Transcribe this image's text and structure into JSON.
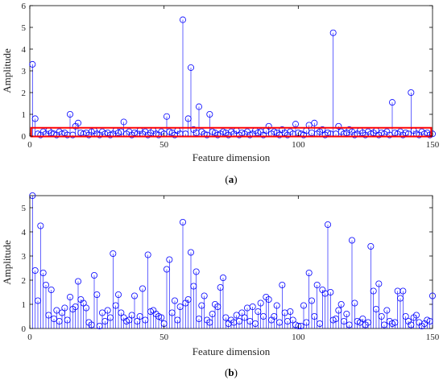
{
  "chart_data": [
    {
      "type": "stem",
      "panel_label": "(a)",
      "xlabel": "Feature dimension",
      "ylabel": "Amplitude",
      "xlim": [
        0,
        150
      ],
      "ylim": [
        0,
        6
      ],
      "xticks": [
        0,
        50,
        100,
        150
      ],
      "yticks": [
        0,
        1,
        2,
        3,
        4,
        5,
        6
      ],
      "grid": false,
      "stem_color": "#0000ff",
      "highlight_box": {
        "x_range": [
          0.5,
          149.5
        ],
        "y_range": [
          -0.02,
          0.38
        ],
        "color": "#ff0000"
      },
      "x": [
        1,
        2,
        3,
        4,
        5,
        6,
        7,
        8,
        9,
        10,
        11,
        12,
        13,
        14,
        15,
        16,
        17,
        18,
        19,
        20,
        21,
        22,
        23,
        24,
        25,
        26,
        27,
        28,
        29,
        30,
        31,
        32,
        33,
        34,
        35,
        36,
        37,
        38,
        39,
        40,
        41,
        42,
        43,
        44,
        45,
        46,
        47,
        48,
        49,
        50,
        51,
        52,
        53,
        54,
        55,
        56,
        57,
        58,
        59,
        60,
        61,
        62,
        63,
        64,
        65,
        66,
        67,
        68,
        69,
        70,
        71,
        72,
        73,
        74,
        75,
        76,
        77,
        78,
        79,
        80,
        81,
        82,
        83,
        84,
        85,
        86,
        87,
        88,
        89,
        90,
        91,
        92,
        93,
        94,
        95,
        96,
        97,
        98,
        99,
        100,
        101,
        102,
        103,
        104,
        105,
        106,
        107,
        108,
        109,
        110,
        111,
        112,
        113,
        114,
        115,
        116,
        117,
        118,
        119,
        120,
        121,
        122,
        123,
        124,
        125,
        126,
        127,
        128,
        129,
        130,
        131,
        132,
        133,
        134,
        135,
        136,
        137,
        138,
        139,
        140,
        141,
        142,
        143,
        144,
        145,
        146,
        147,
        148,
        149,
        150
      ],
      "values": [
        3.3,
        0.8,
        0.1,
        0.05,
        0.2,
        0.1,
        0.25,
        0.15,
        0.1,
        0.05,
        0.2,
        0.1,
        0.15,
        0.05,
        1.0,
        0.05,
        0.45,
        0.6,
        0.15,
        0.1,
        0.15,
        0.05,
        0.2,
        0.25,
        0.1,
        0.05,
        0.2,
        0.1,
        0.15,
        0.05,
        0.1,
        0.25,
        0.15,
        0.2,
        0.65,
        0.1,
        0.2,
        0.05,
        0.15,
        0.1,
        0.25,
        0.1,
        0.2,
        0.05,
        0.15,
        0.25,
        0.1,
        0.05,
        0.2,
        0.1,
        0.9,
        0.2,
        0.15,
        0.05,
        0.25,
        0.1,
        5.35,
        0.1,
        0.8,
        3.15,
        0.3,
        0.15,
        1.35,
        0.2,
        0.1,
        0.05,
        1.0,
        0.2,
        0.15,
        0.05,
        0.1,
        0.2,
        0.15,
        0.05,
        0.2,
        0.1,
        0.25,
        0.05,
        0.15,
        0.1,
        0.2,
        0.05,
        0.1,
        0.25,
        0.15,
        0.2,
        0.05,
        0.25,
        0.45,
        0.1,
        0.2,
        0.15,
        0.05,
        0.3,
        0.15,
        0.05,
        0.2,
        0.1,
        0.55,
        0.15,
        0.1,
        0.05,
        0.25,
        0.5,
        0.15,
        0.6,
        0.1,
        0.2,
        0.3,
        0.05,
        0.15,
        0.1,
        4.75,
        0.1,
        0.45,
        0.2,
        0.1,
        0.15,
        0.3,
        0.2,
        0.05,
        0.1,
        0.25,
        0.15,
        0.05,
        0.2,
        0.1,
        0.15,
        0.25,
        0.05,
        0.15,
        0.1,
        0.2,
        0.05,
        1.55,
        0.15,
        0.1,
        0.2,
        0.05,
        0.15,
        0.1,
        2.0,
        0.25,
        0.1,
        0.05,
        0.2,
        0.1,
        0.15,
        0.05,
        0.1
      ]
    },
    {
      "type": "stem",
      "panel_label": "(b)",
      "xlabel": "Feature dimension",
      "ylabel": "Amplitude",
      "xlim": [
        0,
        150
      ],
      "ylim": [
        0,
        5.5
      ],
      "xticks": [
        0,
        50,
        100,
        150
      ],
      "yticks": [
        0,
        1,
        2,
        3,
        4,
        5
      ],
      "grid": false,
      "stem_color": "#0000ff",
      "x": [
        1,
        2,
        3,
        4,
        5,
        6,
        7,
        8,
        9,
        10,
        11,
        12,
        13,
        14,
        15,
        16,
        17,
        18,
        19,
        20,
        21,
        22,
        23,
        24,
        25,
        26,
        27,
        28,
        29,
        30,
        31,
        32,
        33,
        34,
        35,
        36,
        37,
        38,
        39,
        40,
        41,
        42,
        43,
        44,
        45,
        46,
        47,
        48,
        49,
        50,
        51,
        52,
        53,
        54,
        55,
        56,
        57,
        58,
        59,
        60,
        61,
        62,
        63,
        64,
        65,
        66,
        67,
        68,
        69,
        70,
        71,
        72,
        73,
        74,
        75,
        76,
        77,
        78,
        79,
        80,
        81,
        82,
        83,
        84,
        85,
        86,
        87,
        88,
        89,
        90,
        91,
        92,
        93,
        94,
        95,
        96,
        97,
        98,
        99,
        100,
        101,
        102,
        103,
        104,
        105,
        106,
        107,
        108,
        109,
        110,
        111,
        112,
        113,
        114,
        115,
        116,
        117,
        118,
        119,
        120,
        121,
        122,
        123,
        124,
        125,
        126,
        127,
        128,
        129,
        130,
        131,
        132,
        133,
        134,
        135,
        136,
        137,
        138,
        139,
        140,
        141,
        142,
        143,
        144,
        145,
        146,
        147,
        148,
        149,
        150
      ],
      "values": [
        5.5,
        2.4,
        1.15,
        4.25,
        2.3,
        1.8,
        0.55,
        1.6,
        0.4,
        0.75,
        0.3,
        0.65,
        0.85,
        0.35,
        1.3,
        0.8,
        0.9,
        1.95,
        1.2,
        1.05,
        0.85,
        0.25,
        0.15,
        2.2,
        1.4,
        0.1,
        0.65,
        0.3,
        0.75,
        0.45,
        3.1,
        0.95,
        1.4,
        0.65,
        0.45,
        0.3,
        0.35,
        0.55,
        1.35,
        0.3,
        0.5,
        1.65,
        0.35,
        3.05,
        0.7,
        0.75,
        0.6,
        0.5,
        0.45,
        0.2,
        2.45,
        2.85,
        0.65,
        1.15,
        0.35,
        0.9,
        4.4,
        1.05,
        1.2,
        3.15,
        1.75,
        2.35,
        0.4,
        0.95,
        1.35,
        0.35,
        0.25,
        0.6,
        1.0,
        0.9,
        1.7,
        2.1,
        0.45,
        0.2,
        0.35,
        0.25,
        0.55,
        0.3,
        0.65,
        0.45,
        0.85,
        0.3,
        0.9,
        0.2,
        0.7,
        1.05,
        0.5,
        1.3,
        1.2,
        0.35,
        0.5,
        0.95,
        0.25,
        1.8,
        0.65,
        0.3,
        0.7,
        0.35,
        0.15,
        0.1,
        0.1,
        0.95,
        0.25,
        2.3,
        1.15,
        0.5,
        1.8,
        0.2,
        1.6,
        1.45,
        4.3,
        1.5,
        0.35,
        0.4,
        0.75,
        1.0,
        0.3,
        0.6,
        0.15,
        3.65,
        1.05,
        0.3,
        0.25,
        0.4,
        0.15,
        0.25,
        3.4,
        1.55,
        0.8,
        1.85,
        0.5,
        0.15,
        0.75,
        0.3,
        0.2,
        0.25,
        1.55,
        1.25,
        1.55,
        0.5,
        0.3,
        0.15,
        0.45,
        0.55,
        0.25,
        0.1,
        0.2,
        0.35,
        0.3,
        1.35
      ]
    }
  ]
}
